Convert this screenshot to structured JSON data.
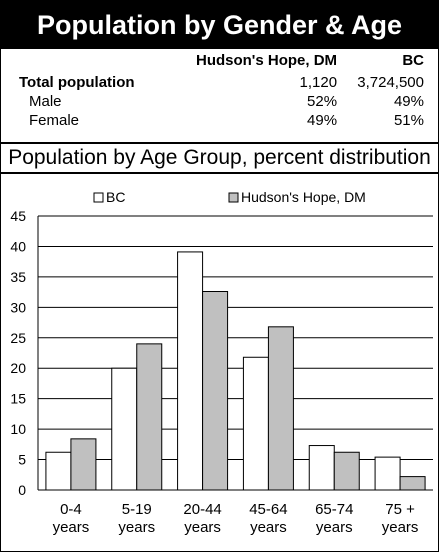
{
  "title": "Population by Gender & Age",
  "stats": {
    "columns": [
      "Hudson's Hope, DM",
      "BC"
    ],
    "rows": [
      {
        "label": "Total population",
        "values": [
          "1,120",
          "3,724,500"
        ],
        "bold": true
      },
      {
        "label": "Male",
        "values": [
          "52%",
          "49%"
        ],
        "bold": false
      },
      {
        "label": "Female",
        "values": [
          "49%",
          "51%"
        ],
        "bold": false
      }
    ]
  },
  "section_title": "Population by Age Group, percent distribution",
  "chart_data": {
    "type": "bar",
    "categories": [
      [
        "0-4",
        "years"
      ],
      [
        "5-19",
        "years"
      ],
      [
        "20-44",
        "years"
      ],
      [
        "45-64",
        "years"
      ],
      [
        "65-74",
        "years"
      ],
      [
        "75 +",
        "years"
      ]
    ],
    "series": [
      {
        "name": "BC",
        "values": [
          6.2,
          20.0,
          39.1,
          21.8,
          7.3,
          5.4
        ],
        "color": "#ffffff"
      },
      {
        "name": "Hudson's Hope, DM",
        "values": [
          8.4,
          24.0,
          32.6,
          26.8,
          6.2,
          2.2
        ],
        "color": "#c0c0c0"
      }
    ],
    "y_ticks": [
      0,
      5,
      10,
      15,
      20,
      25,
      30,
      35,
      40,
      45
    ],
    "ylim": [
      0,
      45
    ],
    "grid": true,
    "legend_position": "top"
  }
}
